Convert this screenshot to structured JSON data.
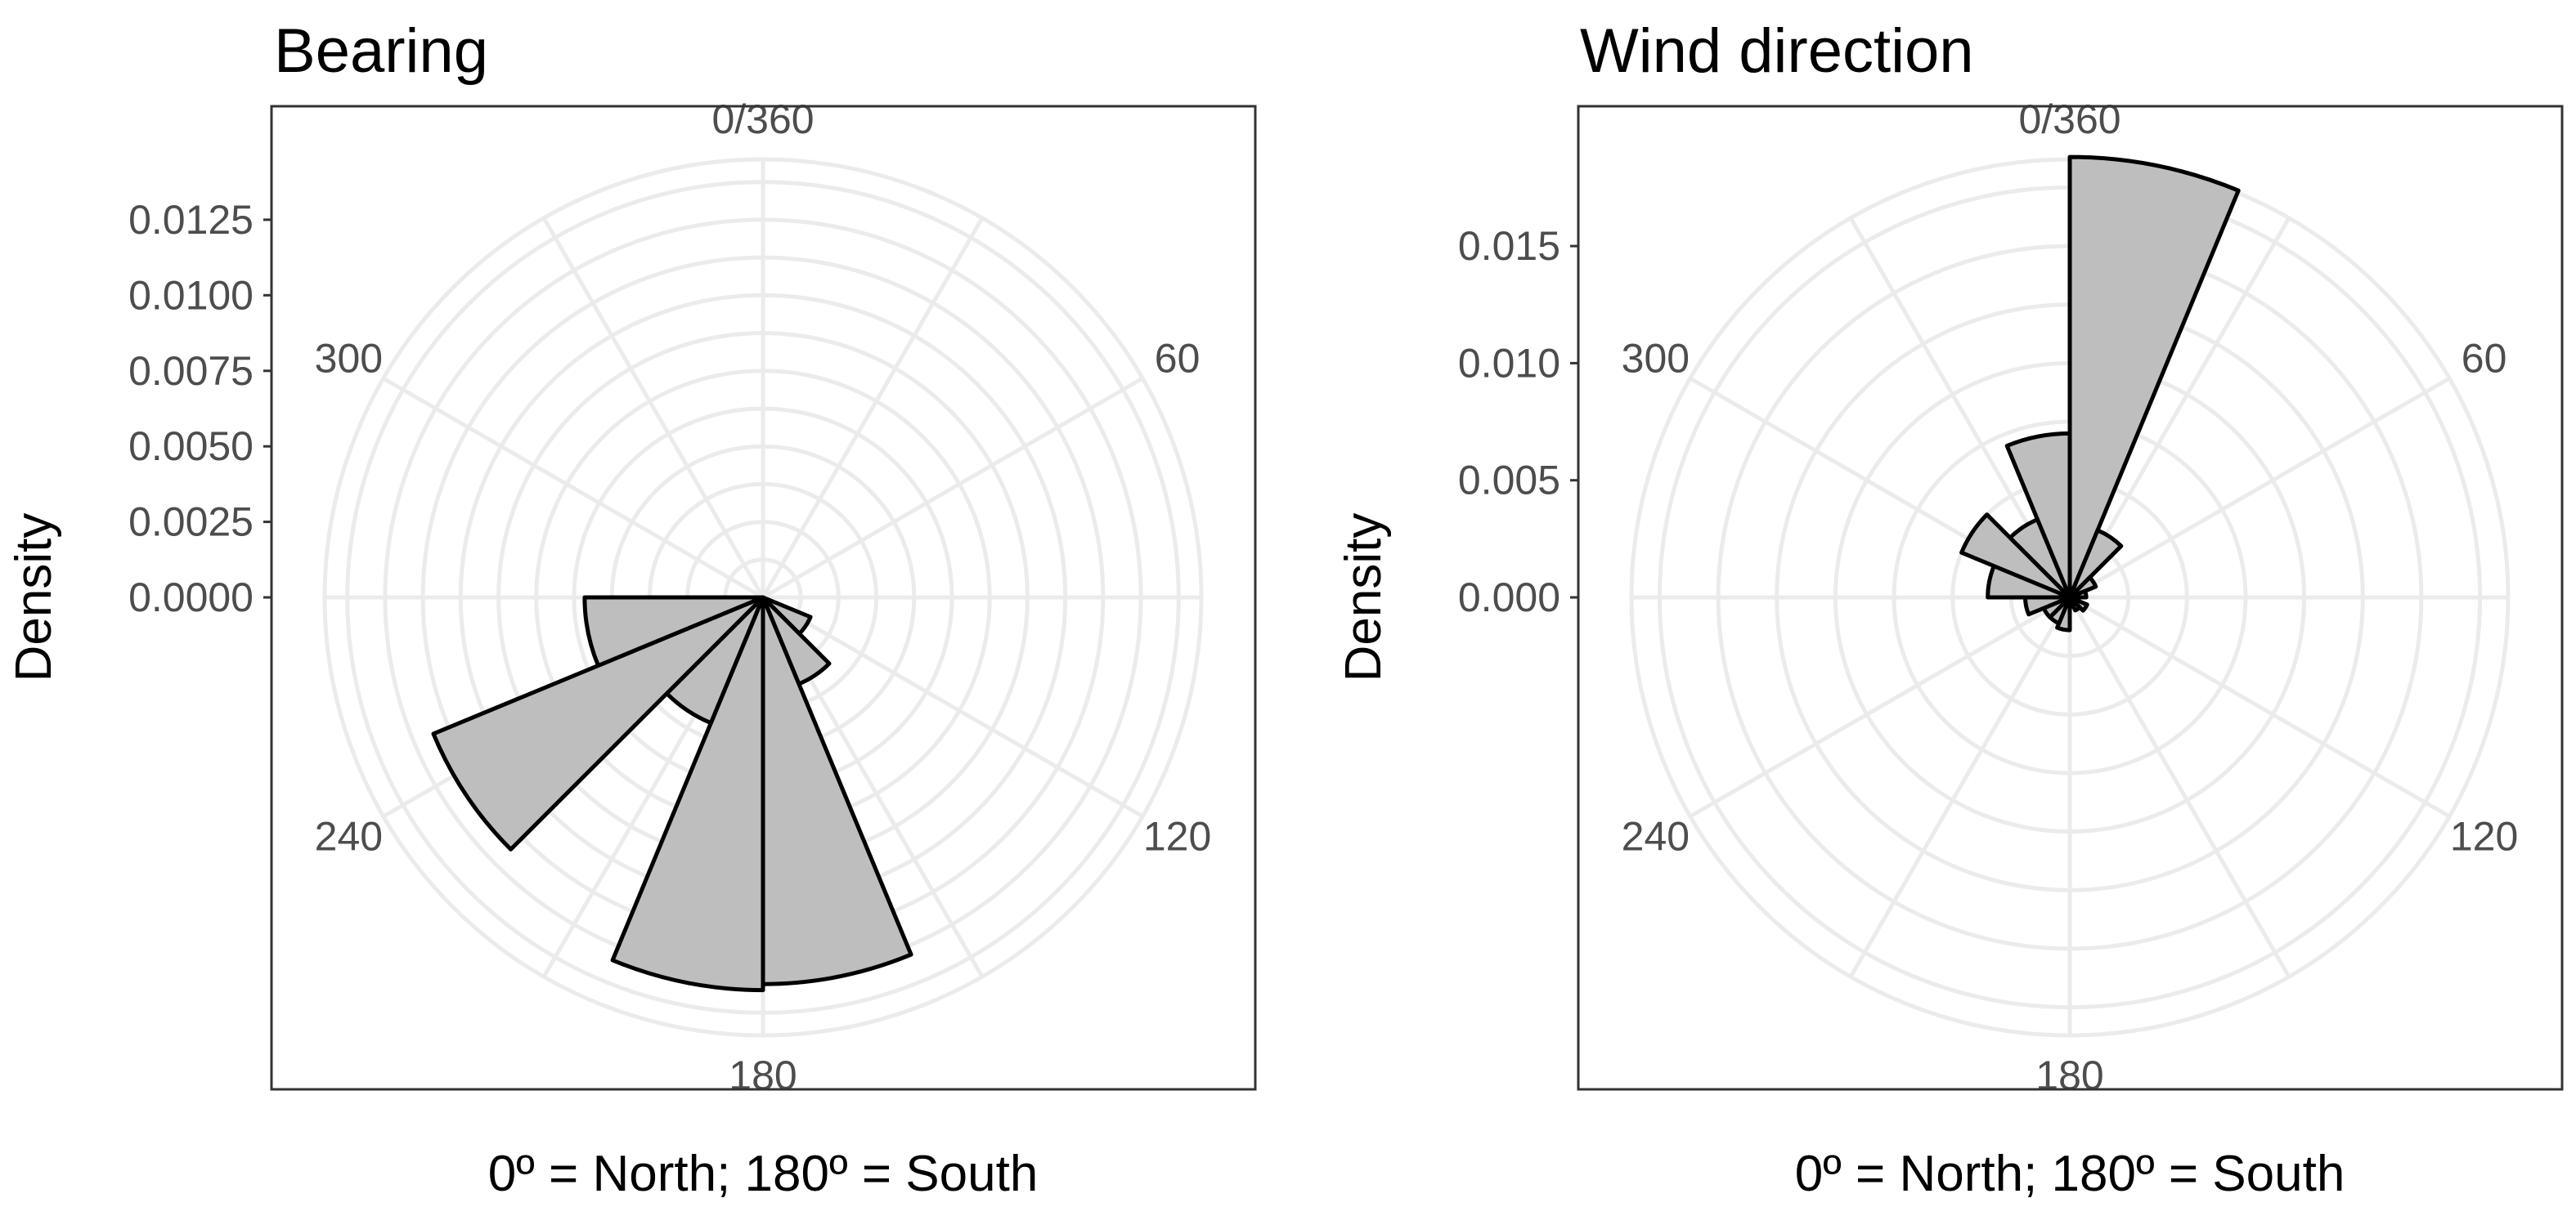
{
  "colors": {
    "bar_fill": "#bebebe",
    "bar_stroke": "#000000",
    "grid": "#ebebeb",
    "panel_border": "#333333",
    "tick_text": "#4d4d4d"
  },
  "chart_data": [
    {
      "type": "polar-histogram",
      "title": "Bearing",
      "xlabel": "0º = North; 180º = South",
      "ylabel": "Density",
      "angle_ticks": [
        "0/360",
        "60",
        "120",
        "180",
        "240",
        "300"
      ],
      "angle_tick_values": [
        0,
        60,
        120,
        180,
        240,
        300
      ],
      "radial_ticks": [
        "0.0000",
        "0.0025",
        "0.0050",
        "0.0075",
        "0.0100",
        "0.0125"
      ],
      "radial_tick_values": [
        0,
        0.0025,
        0.005,
        0.0075,
        0.01,
        0.0125
      ],
      "rlim": [
        0,
        0.0145
      ],
      "bin_width_deg": 22.5,
      "bins_start_deg": [
        0,
        22.5,
        45,
        67.5,
        90,
        112.5,
        135,
        157.5,
        180,
        202.5,
        225,
        247.5,
        270,
        292.5,
        315,
        337.5
      ],
      "values": [
        0,
        0,
        0,
        0,
        0,
        0.0017,
        0.0031,
        0.0128,
        0.013,
        0.0045,
        0.0118,
        0.0059,
        0,
        0,
        0,
        0
      ],
      "grid": true
    },
    {
      "type": "polar-histogram",
      "title": "Wind direction",
      "xlabel": "0º = North; 180º = South",
      "ylabel": "Density",
      "angle_ticks": [
        "0/360",
        "60",
        "120",
        "180",
        "240",
        "300"
      ],
      "angle_tick_values": [
        0,
        60,
        120,
        180,
        240,
        300
      ],
      "radial_ticks": [
        "0.000",
        "0.005",
        "0.010",
        "0.015"
      ],
      "radial_tick_values": [
        0,
        0.005,
        0.01,
        0.015
      ],
      "rlim": [
        0,
        0.0187
      ],
      "bin_width_deg": 22.5,
      "bins_start_deg": [
        0,
        22.5,
        45,
        67.5,
        90,
        112.5,
        135,
        157.5,
        180,
        202.5,
        225,
        247.5,
        270,
        292.5,
        315,
        337.5
      ],
      "values": [
        0.0188,
        0.0031,
        0.0012,
        0.0007,
        0.0003,
        0.0008,
        0.0006,
        0.0004,
        0.0014,
        0.0012,
        0.0012,
        0.0019,
        0.0035,
        0.005,
        0.0036,
        0.007
      ],
      "grid": true
    }
  ]
}
